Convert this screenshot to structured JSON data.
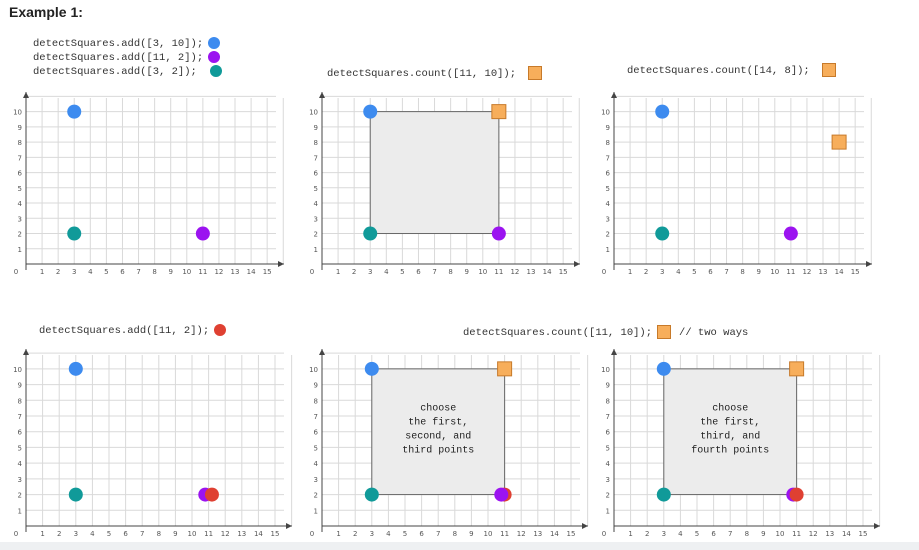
{
  "title": "Example 1:",
  "colors": {
    "blue": "#3d8bef",
    "purple": "#9b13f0",
    "teal": "#109a99",
    "red": "#df4032",
    "orange_fill": "#f7ae5b",
    "orange_stroke": "#c77a2a",
    "square_fill": "#ececec",
    "grid": "#d9d9d9",
    "axis": "#444444"
  },
  "captions": {
    "add1": "detectSquares.add([3, 10]);",
    "add2": "detectSquares.add([11, 2]);",
    "add3": "detectSquares.add([3, 2]);",
    "count1": "detectSquares.count([11, 10]);",
    "count2": "detectSquares.count([14, 8]);",
    "add4": "detectSquares.add([11, 2]);",
    "count3": "detectSquares.count([11, 10]);",
    "comment": "// two ways"
  },
  "axes": {
    "x_ticks": [
      "1",
      "2",
      "3",
      "4",
      "5",
      "6",
      "7",
      "8",
      "9",
      "10",
      "11",
      "12",
      "13",
      "14",
      "15"
    ],
    "y_ticks": [
      "1",
      "2",
      "3",
      "4",
      "5",
      "6",
      "7",
      "8",
      "9",
      "10"
    ],
    "origin": "0"
  },
  "panels": [
    {
      "points": [
        {
          "x": 3,
          "y": 10,
          "shape": "circle",
          "color": "blue"
        },
        {
          "x": 11,
          "y": 2,
          "shape": "circle",
          "color": "purple"
        },
        {
          "x": 3,
          "y": 2,
          "shape": "circle",
          "color": "teal"
        }
      ]
    },
    {
      "square": [
        3,
        2,
        11,
        10
      ],
      "points": [
        {
          "x": 3,
          "y": 10,
          "shape": "circle",
          "color": "blue"
        },
        {
          "x": 11,
          "y": 2,
          "shape": "circle",
          "color": "purple"
        },
        {
          "x": 3,
          "y": 2,
          "shape": "circle",
          "color": "teal"
        },
        {
          "x": 11,
          "y": 10,
          "shape": "square",
          "color": "orange"
        }
      ]
    },
    {
      "points": [
        {
          "x": 3,
          "y": 10,
          "shape": "circle",
          "color": "blue"
        },
        {
          "x": 11,
          "y": 2,
          "shape": "circle",
          "color": "purple"
        },
        {
          "x": 3,
          "y": 2,
          "shape": "circle",
          "color": "teal"
        },
        {
          "x": 14,
          "y": 8,
          "shape": "square",
          "color": "orange"
        }
      ]
    },
    {
      "points": [
        {
          "x": 3,
          "y": 10,
          "shape": "circle",
          "color": "blue"
        },
        {
          "x": 10.8,
          "y": 2,
          "shape": "circle",
          "color": "purple"
        },
        {
          "x": 11.2,
          "y": 2,
          "shape": "circle",
          "color": "red"
        },
        {
          "x": 3,
          "y": 2,
          "shape": "circle",
          "color": "teal"
        }
      ]
    },
    {
      "square": [
        3,
        2,
        11,
        10
      ],
      "label": [
        "choose",
        "the first,",
        "second, and",
        "third points"
      ],
      "points": [
        {
          "x": 3,
          "y": 10,
          "shape": "circle",
          "color": "blue"
        },
        {
          "x": 11,
          "y": 2,
          "shape": "circle",
          "color": "red"
        },
        {
          "x": 10.8,
          "y": 2,
          "shape": "circle",
          "color": "purple"
        },
        {
          "x": 3,
          "y": 2,
          "shape": "circle",
          "color": "teal"
        },
        {
          "x": 11,
          "y": 10,
          "shape": "square",
          "color": "orange"
        }
      ]
    },
    {
      "square": [
        3,
        2,
        11,
        10
      ],
      "label": [
        "choose",
        "the first,",
        "third, and",
        "fourth points"
      ],
      "points": [
        {
          "x": 3,
          "y": 10,
          "shape": "circle",
          "color": "blue"
        },
        {
          "x": 10.8,
          "y": 2,
          "shape": "circle",
          "color": "purple"
        },
        {
          "x": 11,
          "y": 2,
          "shape": "circle",
          "color": "red"
        },
        {
          "x": 3,
          "y": 2,
          "shape": "circle",
          "color": "teal"
        },
        {
          "x": 11,
          "y": 10,
          "shape": "square",
          "color": "orange"
        }
      ]
    }
  ]
}
